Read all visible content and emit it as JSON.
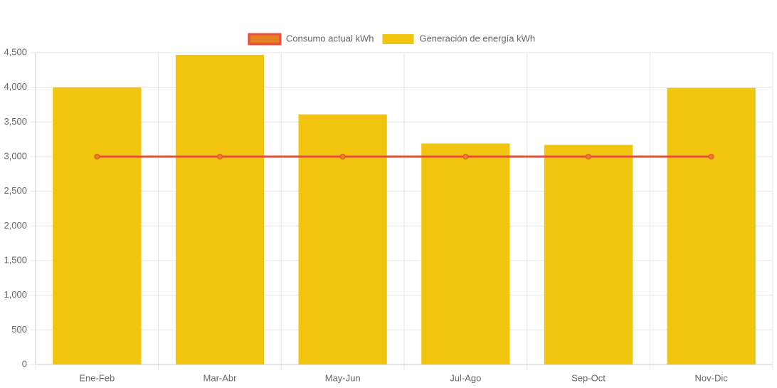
{
  "chart_data": {
    "type": "bar",
    "categories": [
      "Ene-Feb",
      "Mar-Abr",
      "May-Jun",
      "Jul-Ago",
      "Sep-Oct",
      "Nov-Dic"
    ],
    "series": [
      {
        "name": "Consumo actual kWh",
        "type": "line",
        "color": "#e74c3c",
        "point_color": "#e67e22",
        "values": [
          3000,
          3000,
          3000,
          3000,
          3000,
          3000
        ]
      },
      {
        "name": "Generación de energía kWh",
        "type": "bar",
        "color": "#f1c40f",
        "values": [
          4000,
          4470,
          3610,
          3190,
          3170,
          3990
        ]
      }
    ],
    "ylim": [
      0,
      4500
    ],
    "yticks": [
      0,
      500,
      {
        "value": 1000,
        "label": "1,000"
      },
      {
        "value": 1500,
        "label": "1,500"
      },
      {
        "value": 2000,
        "label": "2,000"
      },
      {
        "value": 2500,
        "label": "2,500"
      },
      {
        "value": 3000,
        "label": "3,000"
      },
      {
        "value": 3500,
        "label": "3,500"
      },
      {
        "value": 4000,
        "label": "4,000"
      },
      {
        "value": 4500,
        "label": "4,500"
      }
    ],
    "grid": true,
    "legend": "top"
  }
}
